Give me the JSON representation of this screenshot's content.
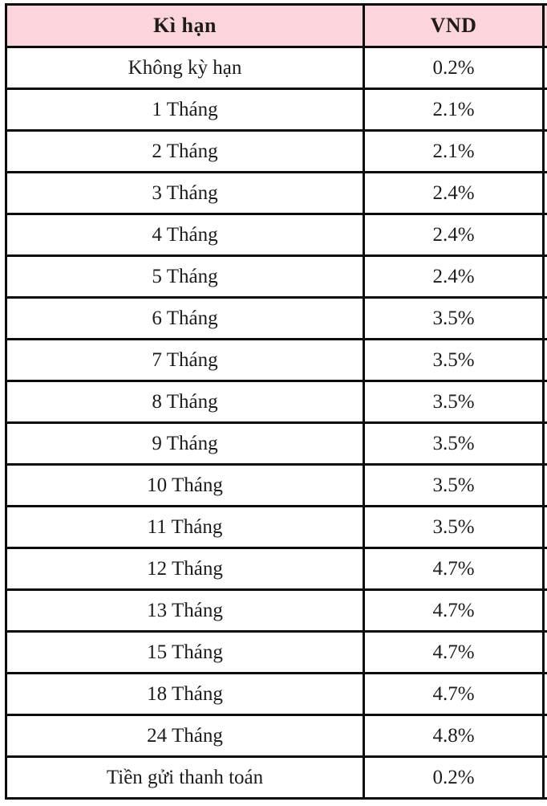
{
  "table": {
    "headers": {
      "term": "Kì hạn",
      "vnd": "VND",
      "cutoff": ""
    },
    "rows": [
      {
        "term": "Không kỳ hạn",
        "rate": "0.2%"
      },
      {
        "term": "1 Tháng",
        "rate": "2.1%"
      },
      {
        "term": "2 Tháng",
        "rate": "2.1%"
      },
      {
        "term": "3 Tháng",
        "rate": "2.4%"
      },
      {
        "term": "4 Tháng",
        "rate": "2.4%"
      },
      {
        "term": "5 Tháng",
        "rate": "2.4%"
      },
      {
        "term": "6 Tháng",
        "rate": "3.5%"
      },
      {
        "term": "7 Tháng",
        "rate": "3.5%"
      },
      {
        "term": "8 Tháng",
        "rate": "3.5%"
      },
      {
        "term": "9 Tháng",
        "rate": "3.5%"
      },
      {
        "term": "10 Tháng",
        "rate": "3.5%"
      },
      {
        "term": "11 Tháng",
        "rate": "3.5%"
      },
      {
        "term": "12 Tháng",
        "rate": "4.7%"
      },
      {
        "term": "13 Tháng",
        "rate": "4.7%"
      },
      {
        "term": "15 Tháng",
        "rate": "4.7%"
      },
      {
        "term": "18 Tháng",
        "rate": "4.7%"
      },
      {
        "term": "24 Tháng",
        "rate": "4.8%"
      },
      {
        "term": "Tiền gửi thanh toán",
        "rate": "0.2%"
      }
    ]
  },
  "colors": {
    "header_background": "#fcd5dc",
    "border": "#0b0b0b",
    "text": "#1c1c1c",
    "page_background": "#ffffff"
  }
}
